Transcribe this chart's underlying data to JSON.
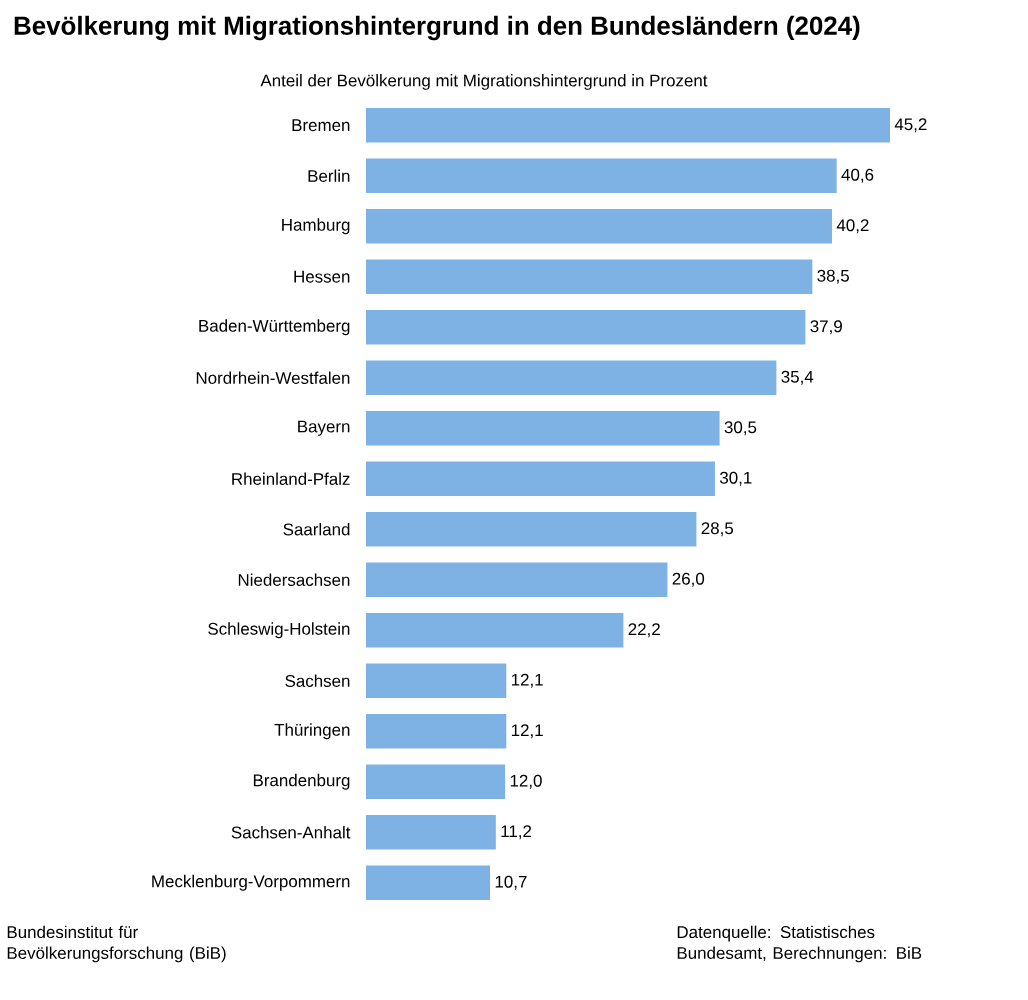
{
  "chart_data": {
    "type": "bar",
    "orientation": "horizontal",
    "title": "Bevölkerung mit Migrationshintergrund in den Bundesländern (2024)",
    "subtitle": "Anteil der Bevölkerung mit Migrationshintergrund in Prozent",
    "categories": [
      "Bremen",
      "Berlin",
      "Hamburg",
      "Hessen",
      "Baden-Württemberg",
      "Nordrhein-Westfalen",
      "Bayern",
      "Rheinland-Pfalz",
      "Saarland",
      "Niedersachsen",
      "Schleswig-Holstein",
      "Sachsen",
      "Thüringen",
      "Brandenburg",
      "Sachsen-Anhalt",
      "Mecklenburg-Vorpommern"
    ],
    "values": [
      45.2,
      40.6,
      40.2,
      38.5,
      37.9,
      35.4,
      30.5,
      30.1,
      28.5,
      26.0,
      22.2,
      12.1,
      12.1,
      12.0,
      11.2,
      10.7
    ],
    "value_labels": [
      "45,2",
      "40,6",
      "40,2",
      "38,5",
      "37,9",
      "35,4",
      "30,5",
      "30,1",
      "28,5",
      "26,0",
      "22,2",
      "12,1",
      "12,1",
      "12,0",
      "11,2",
      "10,7"
    ],
    "color": "#7eb2e4",
    "tick_labels": "y",
    "annotations": [
      "Bundesinstitut für Bevölkerungsforschung (BiB)",
      "Datenquelle: Statistisches Bundesamt, Berechnungen: BiB"
    ]
  }
}
